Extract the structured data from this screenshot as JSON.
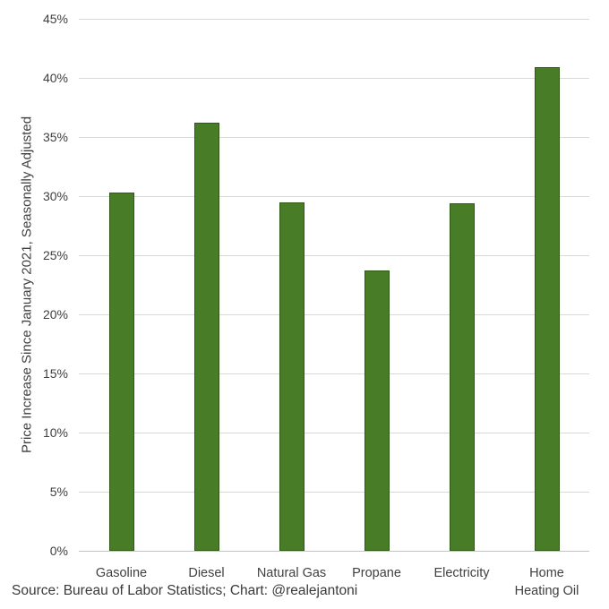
{
  "chart_data": {
    "type": "bar",
    "categories": [
      "Gasoline",
      "Diesel",
      "Natural Gas",
      "Propane",
      "Electricity",
      "Home\nHeating Oil"
    ],
    "values": [
      30.3,
      36.2,
      29.5,
      23.7,
      29.4,
      40.9
    ],
    "title": "",
    "xlabel": "",
    "ylabel": "Price Increase Since January 2021, Seasonally Adjusted",
    "ylim": [
      0,
      45
    ],
    "ytick_step": 5,
    "ytick_suffix": "%",
    "grid": true,
    "legend": "none",
    "bar_color": "#487c26",
    "bar_border_color": "#2d5a13",
    "gridline_color": "#d9d9d9",
    "axis_line_color": "#c3c3c3",
    "text_color": "#404040"
  },
  "footer": {
    "source": "Source: Bureau of Labor Statistics; Chart: @realejantoni"
  }
}
